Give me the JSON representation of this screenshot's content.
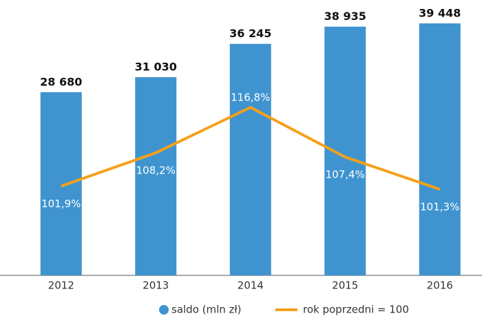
{
  "chart_data": {
    "type": "bar",
    "categories": [
      "2012",
      "2013",
      "2014",
      "2015",
      "2016"
    ],
    "ylim": [
      0,
      43000
    ],
    "y2lim": [
      85,
      137
    ],
    "series": [
      {
        "name": "saldo (mln zł)",
        "type": "bar",
        "color": "#3f94d0",
        "values": [
          28680,
          31030,
          36245,
          38935,
          39448
        ],
        "value_labels": [
          "28 680",
          "31 030",
          "36 245",
          "38 935",
          "39 448"
        ]
      },
      {
        "name": "rok poprzedni = 100",
        "type": "line",
        "axis": "y2",
        "color": "#f5a01a",
        "values": [
          101.9,
          108.2,
          116.8,
          107.4,
          101.3
        ],
        "value_labels": [
          "101,9%",
          "108,2%",
          "116,8%",
          "107,4%",
          "101,3%"
        ]
      }
    ],
    "legend": "bottom"
  }
}
